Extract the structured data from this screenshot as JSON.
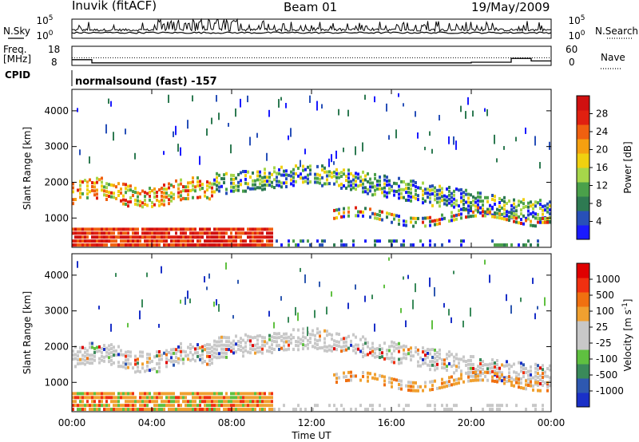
{
  "header": {
    "station": "Inuvik (fitACF)",
    "beam": "Beam 01",
    "date": "19/May/2009"
  },
  "colors": {
    "power_scale": [
      "#1a1aff",
      "#2850b8",
      "#2e7a52",
      "#4aa04a",
      "#a6d64a",
      "#f0d010",
      "#f5a010",
      "#f06010",
      "#e02010",
      "#d01010"
    ],
    "velocity_scale": [
      "#1a30c8",
      "#2e58b0",
      "#3a8a5a",
      "#5fc040",
      "#c8c8c8",
      "#c8c8c8",
      "#f0a030",
      "#f07010",
      "#f03010",
      "#e00000"
    ]
  },
  "chart_data": [
    {
      "type": "line",
      "name": "sky-noise-search-noise",
      "labels_left": [
        "N.Sky",
        "10^5",
        "10^0"
      ],
      "labels_right": [
        "10^5",
        "10^0",
        "N.Search"
      ],
      "ylabel_left": "N.Sky",
      "ylabel_right": "N.Search"
    },
    {
      "type": "line",
      "name": "freq-nave",
      "ylabel_left": "Freq. [MHz]",
      "ylabel_right": "Nave",
      "left_ticks": [
        "18",
        "8"
      ],
      "right_ticks": [
        "60",
        "0"
      ],
      "cpid_label": "CPID",
      "cpid_text": "normalsound (fast) -157",
      "freq_values_mhz": [
        12,
        12,
        12,
        12,
        12,
        12,
        12,
        12,
        12,
        12,
        12,
        12,
        12,
        12,
        12,
        12,
        12,
        12,
        12,
        12,
        12,
        12,
        12,
        12
      ],
      "nave_values": [
        18,
        8,
        8,
        8,
        8,
        8,
        8,
        8,
        8,
        8,
        8,
        8,
        8,
        8,
        8,
        8,
        8,
        8,
        8,
        8,
        10,
        10,
        22,
        14
      ]
    },
    {
      "type": "heatmap",
      "name": "power-rti",
      "ylabel": "Slant Range [km]",
      "yticks": [
        "1000",
        "2000",
        "3000",
        "4000"
      ],
      "ylim": [
        180,
        4600
      ],
      "xlim": [
        "00:00",
        "24:00"
      ],
      "colorbar_label": "Power [dB]",
      "colorbar_ticks": [
        "28",
        "24",
        "20",
        "16",
        "12",
        "8",
        "4"
      ]
    },
    {
      "type": "heatmap",
      "name": "velocity-rti",
      "ylabel": "Slant Range [km]",
      "yticks": [
        "1000",
        "2000",
        "3000",
        "4000"
      ],
      "ylim": [
        180,
        4600
      ],
      "xlim": [
        "00:00",
        "24:00"
      ],
      "xticks": [
        "00:00",
        "04:00",
        "08:00",
        "12:00",
        "16:00",
        "20:00",
        "00:00"
      ],
      "xlabel": "Time UT",
      "colorbar_label": "Velocity [m s^-1]",
      "colorbar_ticks": [
        "1000",
        "500",
        "100",
        "25",
        "-25",
        "-100",
        "-500",
        "-1000"
      ]
    }
  ]
}
